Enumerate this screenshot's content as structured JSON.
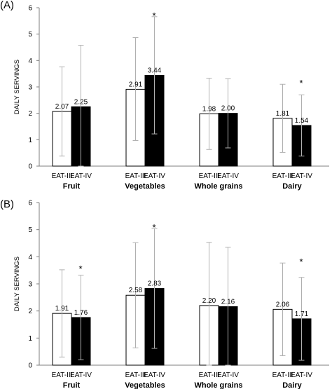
{
  "chart_data": [
    {
      "panel_label": "(A)",
      "type": "bar",
      "ylabel": "DAILY SERVINGS",
      "ylim": [
        0,
        6
      ],
      "yticks": [
        "0",
        "1",
        "2",
        "3",
        "4",
        "5",
        "6"
      ],
      "grid": false,
      "groups": [
        {
          "category": "Fruit",
          "bars": [
            {
              "series": "EAT-III",
              "value": 2.07,
              "label": "2.07",
              "err_low": 0.38,
              "err_high": 3.76
            },
            {
              "series": "EAT-IV",
              "value": 2.25,
              "label": "2.25",
              "err_low": 0.0,
              "err_high": 4.58
            }
          ],
          "significance": ""
        },
        {
          "category": "Vegetables",
          "bars": [
            {
              "series": "EAT-III",
              "value": 2.91,
              "label": "2.91",
              "err_low": 0.97,
              "err_high": 4.87
            },
            {
              "series": "EAT-IV",
              "value": 3.44,
              "label": "3.44",
              "err_low": 1.22,
              "err_high": 5.66
            }
          ],
          "significance": "*"
        },
        {
          "category": "Whole grains",
          "bars": [
            {
              "series": "EAT-III",
              "value": 1.98,
              "label": "1.98",
              "err_low": 0.63,
              "err_high": 3.33
            },
            {
              "series": "EAT-IV",
              "value": 2.0,
              "label": "2.00",
              "err_low": 0.69,
              "err_high": 3.31
            }
          ],
          "significance": ""
        },
        {
          "category": "Dairy",
          "bars": [
            {
              "series": "EAT-III",
              "value": 1.81,
              "label": "1.81",
              "err_low": 0.52,
              "err_high": 3.1
            },
            {
              "series": "EAT-IV",
              "value": 1.54,
              "label": "1.54",
              "err_low": 0.38,
              "err_high": 2.7
            }
          ],
          "significance": "*"
        }
      ]
    },
    {
      "panel_label": "(B)",
      "type": "bar",
      "ylabel": "DAILY SERVINGS",
      "ylim": [
        0,
        6
      ],
      "yticks": [
        "0",
        "1",
        "2",
        "3",
        "4",
        "5",
        "6"
      ],
      "grid": false,
      "groups": [
        {
          "category": "Fruit",
          "bars": [
            {
              "series": "EAT-III",
              "value": 1.91,
              "label": "1.91",
              "err_low": 0.3,
              "err_high": 3.52
            },
            {
              "series": "EAT-IV",
              "value": 1.76,
              "label": "1.76",
              "err_low": 0.2,
              "err_high": 3.32
            }
          ],
          "significance": "*"
        },
        {
          "category": "Vegetables",
          "bars": [
            {
              "series": "EAT-III",
              "value": 2.58,
              "label": "2.58",
              "err_low": 0.64,
              "err_high": 4.52
            },
            {
              "series": "EAT-IV",
              "value": 2.83,
              "label": "2.83",
              "err_low": 0.62,
              "err_high": 5.04
            }
          ],
          "significance": "*"
        },
        {
          "category": "Whole grains",
          "bars": [
            {
              "series": "EAT-III",
              "value": 2.2,
              "label": "2.20",
              "err_low": 0.0,
              "err_high": 4.53
            },
            {
              "series": "EAT-IV",
              "value": 2.16,
              "label": "2.16",
              "err_low": 0.0,
              "err_high": 4.35
            }
          ],
          "significance": ""
        },
        {
          "category": "Dairy",
          "bars": [
            {
              "series": "EAT-III",
              "value": 2.06,
              "label": "2.06",
              "err_low": 0.35,
              "err_high": 3.77
            },
            {
              "series": "EAT-IV",
              "value": 1.71,
              "label": "1.71",
              "err_low": 0.18,
              "err_high": 3.24
            }
          ],
          "significance": "*"
        }
      ]
    }
  ],
  "colors": {
    "EAT-III": "#ffffff",
    "EAT-IV": "#000000",
    "error_bar": "#b0b0b0",
    "axis": "#7f7f7f"
  }
}
